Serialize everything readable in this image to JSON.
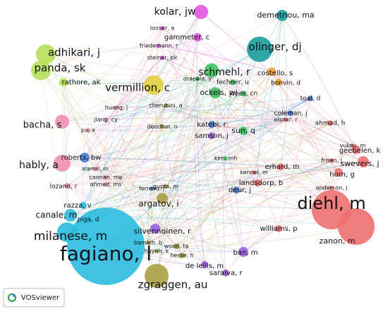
{
  "nodes": [
    {
      "label": "fagiano, l"
    },
    {
      "label": "milanese, m"
    },
    {
      "label": "zgraggen, au"
    },
    {
      "label": "diehl, m"
    },
    {
      "label": "zanon, m"
    },
    {
      "label": "horn, g"
    },
    {
      "label": "swevers, j"
    },
    {
      "label": "geebelen, k"
    },
    {
      "label": "adhikari, j"
    },
    {
      "label": "panda, sk"
    },
    {
      "label": "rathore, ak"
    },
    {
      "label": "kolar, jw"
    },
    {
      "label": "gammeter, c"
    },
    {
      "label": "olinger, dj"
    },
    {
      "label": "demetriou, ma"
    },
    {
      "label": "vermillion, c"
    },
    {
      "label": "schmehl, r"
    },
    {
      "label": "ockels, wj"
    },
    {
      "label": "costello, s"
    },
    {
      "label": "bonvin, d"
    },
    {
      "label": "bacha, s"
    },
    {
      "label": "hably, a"
    },
    {
      "label": "lozano, r"
    },
    {
      "label": "roberts, bw"
    },
    {
      "label": "canale, m"
    },
    {
      "label": "razza, v"
    },
    {
      "label": "argatov, i"
    },
    {
      "label": "silvennoinen, r"
    },
    {
      "label": "sun, q"
    },
    {
      "label": "landsdorp, b"
    },
    {
      "label": "erhard, m"
    },
    {
      "label": "deur, j"
    },
    {
      "label": "williams, p"
    },
    {
      "label": "ban, m"
    },
    {
      "label": "de lellis, m"
    },
    {
      "label": "saraiva, r"
    },
    {
      "label": "katebi, r"
    },
    {
      "label": "samson, j"
    },
    {
      "label": "toal, d"
    },
    {
      "label": "coleman, j"
    },
    {
      "label": "ahmad, h"
    },
    {
      "label": "fechner, u"
    },
    {
      "label": "jones, cn"
    },
    {
      "label": "cherubini, a"
    },
    {
      "label": "deodhar, n"
    },
    {
      "label": "huang, j"
    },
    {
      "label": "jiang, cy"
    },
    {
      "label": "pu, x"
    },
    {
      "label": "alamir, m"
    },
    {
      "label": "cannan, me"
    },
    {
      "label": "ahmed, ms"
    },
    {
      "label": "vukov, m"
    },
    {
      "label": "frisen, j"
    },
    {
      "label": "anderson, j"
    },
    {
      "label": "looser, a"
    },
    {
      "label": "friedemann, r"
    },
    {
      "label": "steiner, pk"
    },
    {
      "label": "drapela, y"
    },
    {
      "label": "wood, ta"
    },
    {
      "label": "hesse, h"
    },
    {
      "label": "bamieh, b"
    },
    {
      "label": "huynh, k"
    },
    {
      "label": "gupta, m"
    },
    {
      "label": "ferreau, j"
    },
    {
      "label": "elsner, r"
    },
    {
      "label": "kim, mh"
    },
    {
      "label": "piga, d"
    },
    {
      "label": "kennel, m"
    }
  ],
  "footer": {
    "logo_text": "VOSviewer"
  }
}
